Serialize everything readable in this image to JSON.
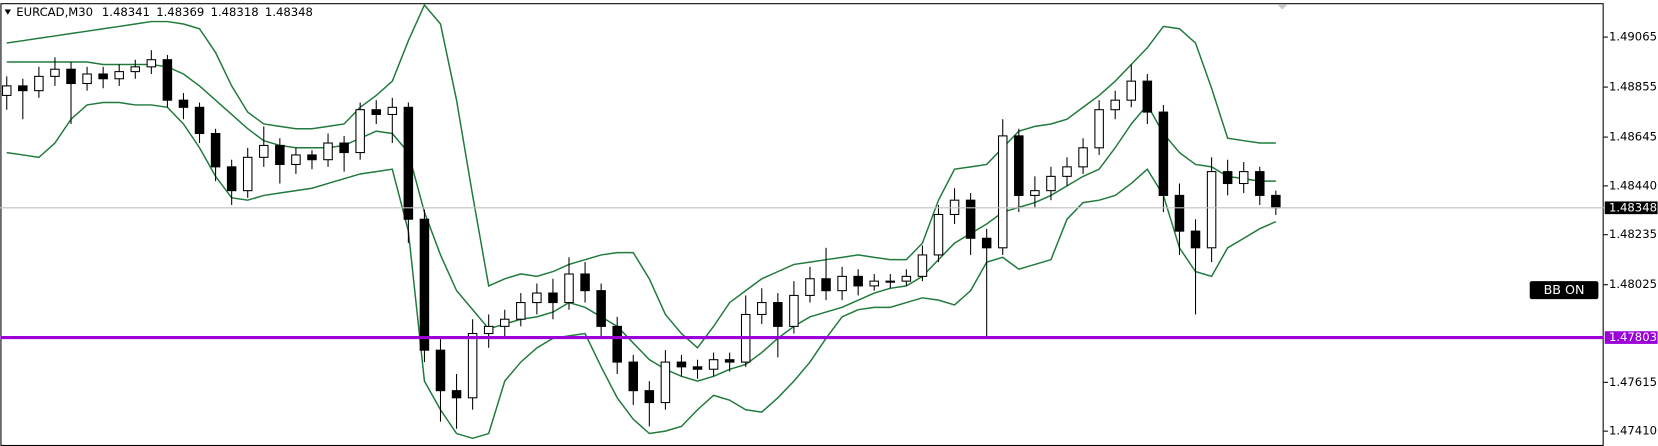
{
  "chart_data": {
    "type": "candlestick",
    "title": "EURCAD,M30",
    "ohlc": [
      1.48341,
      1.48369,
      1.48318,
      1.48348
    ],
    "ylim": [
      1.47352,
      1.49203
    ],
    "yticks": [
      1.49065,
      1.48855,
      1.48645,
      {
        "value": 1.4844,
        "label": "1.48440"
      },
      1.48235,
      1.48025,
      1.47615,
      {
        "value": 1.4741,
        "label": "1.47410"
      }
    ],
    "grid": false,
    "last_price": 1.48348,
    "hline": {
      "value": 1.47803,
      "color": "#9b00d9"
    },
    "badge": "BB ON",
    "candles": {
      "open": [
        1.4882,
        1.4886,
        1.4884,
        1.489,
        1.4893,
        1.4887,
        1.4891,
        1.4889,
        1.4892,
        1.4894,
        1.4897,
        1.488,
        1.4877,
        1.4866,
        1.4852,
        1.4842,
        1.4856,
        1.4861,
        1.4853,
        1.4857,
        1.4855,
        1.4862,
        1.4858,
        1.4876,
        1.4874,
        1.4877,
        1.483,
        1.4775,
        1.4758,
        1.4755,
        1.4782,
        1.4785,
        1.4788,
        1.4795,
        1.4799,
        1.4795,
        1.4807,
        1.48,
        1.4785,
        1.477,
        1.4758,
        1.4753,
        1.477,
        1.4768,
        1.4767,
        1.4771,
        1.477,
        1.479,
        1.4795,
        1.4785,
        1.4798,
        1.4805,
        1.48,
        1.4806,
        1.4802,
        1.4804,
        1.4804,
        1.4806,
        1.4815,
        1.4832,
        1.4838,
        1.4822,
        1.4818,
        1.4865,
        1.484,
        1.4842,
        1.4848,
        1.4852,
        1.486,
        1.4876,
        1.488,
        1.4888,
        1.4875,
        1.484,
        1.4825,
        1.4818,
        1.485,
        1.4845,
        1.485,
        1.484
      ],
      "high": [
        1.489,
        1.4889,
        1.4894,
        1.4898,
        1.4896,
        1.4894,
        1.4894,
        1.4895,
        1.4897,
        1.4901,
        1.4899,
        1.4883,
        1.4879,
        1.4868,
        1.4855,
        1.486,
        1.4869,
        1.4864,
        1.486,
        1.4859,
        1.4866,
        1.4865,
        1.4879,
        1.488,
        1.4881,
        1.4879,
        1.4834,
        1.478,
        1.4765,
        1.4788,
        1.479,
        1.4792,
        1.4799,
        1.4803,
        1.4805,
        1.4814,
        1.4812,
        1.4803,
        1.4789,
        1.4773,
        1.4762,
        1.4775,
        1.4773,
        1.4771,
        1.4774,
        1.4774,
        1.4798,
        1.4801,
        1.4799,
        1.4804,
        1.481,
        1.4818,
        1.481,
        1.4809,
        1.4807,
        1.4807,
        1.4809,
        1.4819,
        1.4836,
        1.4843,
        1.4841,
        1.4826,
        1.4872,
        1.4868,
        1.4848,
        1.4852,
        1.4856,
        1.4864,
        1.488,
        1.4884,
        1.4895,
        1.4891,
        1.4878,
        1.4845,
        1.483,
        1.4856,
        1.4855,
        1.4854,
        1.4852,
        1.4842
      ],
      "low": [
        1.4876,
        1.4872,
        1.4881,
        1.4886,
        1.487,
        1.4884,
        1.4885,
        1.4886,
        1.4889,
        1.4891,
        1.4877,
        1.4872,
        1.4862,
        1.4846,
        1.4836,
        1.4839,
        1.4852,
        1.4845,
        1.4849,
        1.4851,
        1.4852,
        1.485,
        1.4855,
        1.487,
        1.4862,
        1.482,
        1.477,
        1.4745,
        1.4742,
        1.475,
        1.4776,
        1.478,
        1.4785,
        1.479,
        1.4788,
        1.4792,
        1.4795,
        1.478,
        1.4765,
        1.4752,
        1.4743,
        1.475,
        1.4764,
        1.4763,
        1.4764,
        1.4766,
        1.4768,
        1.4786,
        1.4772,
        1.4782,
        1.4795,
        1.4796,
        1.4796,
        1.4798,
        1.48,
        1.4801,
        1.4802,
        1.4804,
        1.4812,
        1.4828,
        1.4815,
        1.478,
        1.4815,
        1.4833,
        1.4835,
        1.4838,
        1.4844,
        1.4849,
        1.4857,
        1.4872,
        1.4877,
        1.487,
        1.4833,
        1.4815,
        1.479,
        1.4812,
        1.484,
        1.4841,
        1.4836,
        1.48318
      ],
      "close": [
        1.4886,
        1.4884,
        1.489,
        1.4893,
        1.4887,
        1.4891,
        1.4889,
        1.4892,
        1.4894,
        1.4897,
        1.488,
        1.4877,
        1.4866,
        1.4852,
        1.4842,
        1.4856,
        1.4861,
        1.4853,
        1.4857,
        1.4855,
        1.4862,
        1.4858,
        1.4876,
        1.4874,
        1.4877,
        1.483,
        1.4775,
        1.4758,
        1.4755,
        1.4782,
        1.4785,
        1.4788,
        1.4795,
        1.4799,
        1.4795,
        1.4807,
        1.48,
        1.4785,
        1.477,
        1.4758,
        1.4753,
        1.477,
        1.4768,
        1.4767,
        1.4771,
        1.477,
        1.479,
        1.4795,
        1.4785,
        1.4798,
        1.4805,
        1.48,
        1.4806,
        1.4802,
        1.4804,
        1.4804,
        1.4806,
        1.4815,
        1.4832,
        1.4838,
        1.4822,
        1.4818,
        1.4865,
        1.484,
        1.4842,
        1.4848,
        1.4852,
        1.486,
        1.4876,
        1.488,
        1.4888,
        1.4875,
        1.484,
        1.4825,
        1.4818,
        1.485,
        1.4845,
        1.485,
        1.484,
        1.48348
      ]
    },
    "bands": {
      "color": "#1f7a3c",
      "upper": [
        1.4904,
        1.4905,
        1.4906,
        1.4907,
        1.4908,
        1.4909,
        1.491,
        1.4911,
        1.4912,
        1.4913,
        1.4913,
        1.4912,
        1.491,
        1.49,
        1.4886,
        1.4875,
        1.487,
        1.4869,
        1.4868,
        1.4868,
        1.4869,
        1.487,
        1.4877,
        1.4882,
        1.4888,
        1.4905,
        1.492,
        1.4912,
        1.488,
        1.484,
        1.4802,
        1.4805,
        1.4807,
        1.4806,
        1.4808,
        1.4811,
        1.4813,
        1.4815,
        1.4816,
        1.4816,
        1.4805,
        1.479,
        1.4782,
        1.4776,
        1.4785,
        1.4795,
        1.48,
        1.4805,
        1.4808,
        1.4811,
        1.4812,
        1.4813,
        1.4814,
        1.4815,
        1.4814,
        1.4813,
        1.4813,
        1.482,
        1.4838,
        1.4851,
        1.4852,
        1.4853,
        1.486,
        1.4867,
        1.4869,
        1.487,
        1.4872,
        1.4877,
        1.4882,
        1.4888,
        1.4895,
        1.4902,
        1.4911,
        1.491,
        1.4904,
        1.4885,
        1.4864,
        1.4863,
        1.4862,
        1.4862
      ],
      "middle": [
        1.4896,
        1.4896,
        1.4896,
        1.4896,
        1.4896,
        1.4896,
        1.4895,
        1.4895,
        1.4895,
        1.4895,
        1.4894,
        1.4891,
        1.4886,
        1.488,
        1.4874,
        1.4868,
        1.4863,
        1.4861,
        1.486,
        1.486,
        1.486,
        1.4861,
        1.4864,
        1.4867,
        1.4866,
        1.4858,
        1.4833,
        1.4815,
        1.48,
        1.4792,
        1.4784,
        1.4786,
        1.4788,
        1.4789,
        1.4791,
        1.4795,
        1.4793,
        1.4789,
        1.4785,
        1.4778,
        1.4771,
        1.4767,
        1.4764,
        1.4762,
        1.4764,
        1.4767,
        1.4769,
        1.4774,
        1.478,
        1.4785,
        1.4789,
        1.4791,
        1.4793,
        1.4796,
        1.4799,
        1.4801,
        1.4802,
        1.4806,
        1.4813,
        1.482,
        1.4824,
        1.4828,
        1.4833,
        1.4835,
        1.4837,
        1.484,
        1.4844,
        1.4848,
        1.4851,
        1.486,
        1.487,
        1.4878,
        1.4866,
        1.4858,
        1.4853,
        1.4852,
        1.4848,
        1.4847,
        1.4846,
        1.4846
      ],
      "lower": [
        1.4858,
        1.4857,
        1.4856,
        1.4862,
        1.4872,
        1.4878,
        1.4879,
        1.4879,
        1.4878,
        1.4878,
        1.4877,
        1.487,
        1.486,
        1.4848,
        1.4839,
        1.4838,
        1.484,
        1.4841,
        1.4842,
        1.4843,
        1.4845,
        1.4847,
        1.4849,
        1.485,
        1.4851,
        1.4825,
        1.4762,
        1.475,
        1.474,
        1.4738,
        1.474,
        1.4762,
        1.477,
        1.4776,
        1.478,
        1.4781,
        1.4782,
        1.4768,
        1.4755,
        1.4746,
        1.474,
        1.4741,
        1.4743,
        1.475,
        1.4756,
        1.4754,
        1.475,
        1.4749,
        1.4755,
        1.4762,
        1.477,
        1.478,
        1.4789,
        1.4792,
        1.4793,
        1.4793,
        1.4795,
        1.4797,
        1.4796,
        1.4794,
        1.48,
        1.4812,
        1.4814,
        1.4809,
        1.4811,
        1.4813,
        1.483,
        1.4837,
        1.4838,
        1.484,
        1.4845,
        1.4851,
        1.484,
        1.4818,
        1.4808,
        1.4806,
        1.4818,
        1.4822,
        1.4826,
        1.4829
      ]
    }
  }
}
